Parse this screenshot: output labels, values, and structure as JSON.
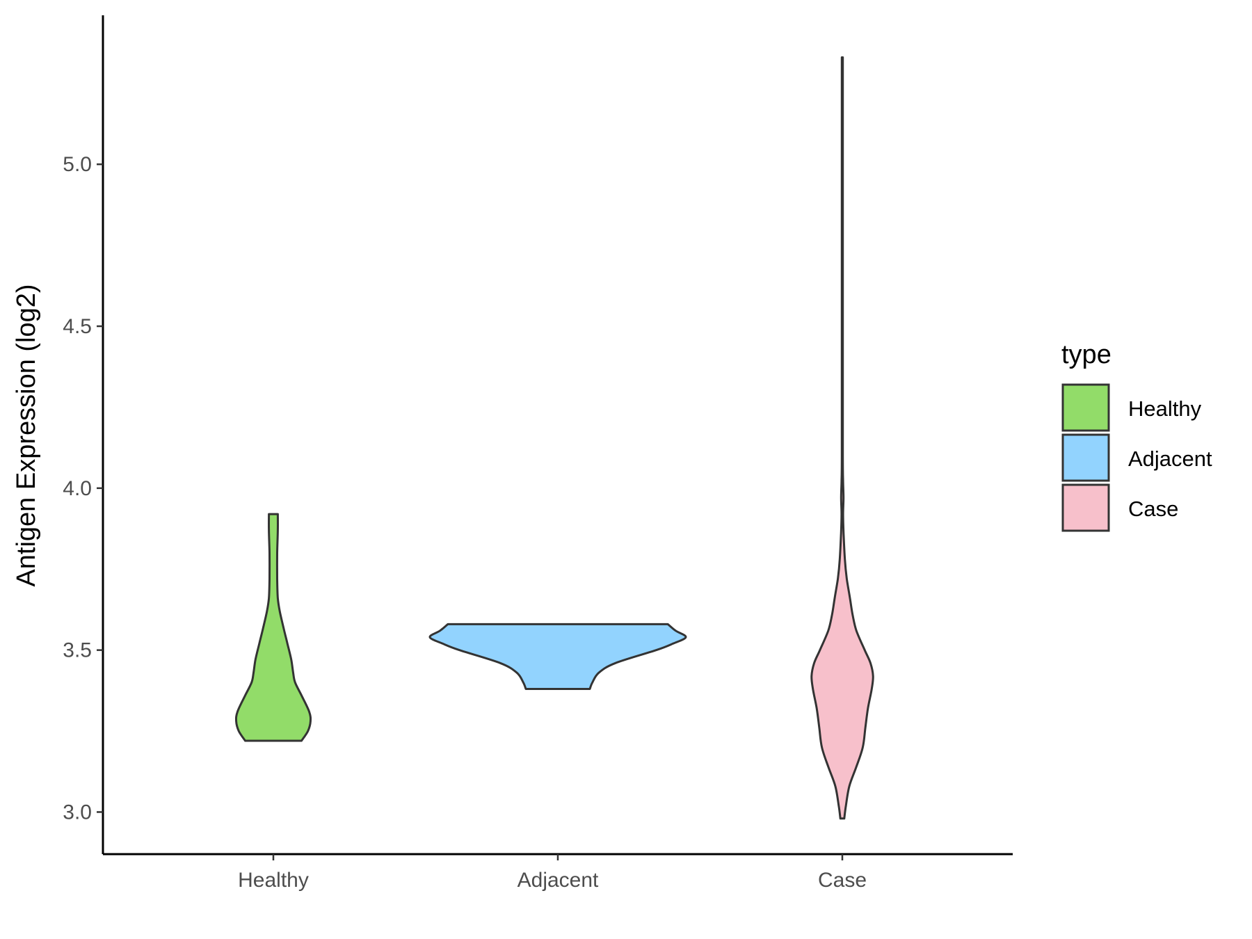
{
  "chart_data": {
    "type": "violin",
    "xlabel": "",
    "ylabel": "Antigen Expression (log2)",
    "ylim": [
      2.87,
      5.46
    ],
    "yticks": [
      "3.0",
      "3.5",
      "4.0",
      "4.5",
      "5.0"
    ],
    "categories": [
      "Healthy",
      "Adjacent",
      "Case"
    ],
    "legend": {
      "title": "type",
      "position": "right",
      "items": [
        {
          "label": "Healthy",
          "color": "#92dc69"
        },
        {
          "label": "Adjacent",
          "color": "#92d3fe"
        },
        {
          "label": "Case",
          "color": "#f7c0cb"
        }
      ]
    },
    "grid": false,
    "series": [
      {
        "name": "Healthy",
        "color": "#92dc69",
        "min": 3.22,
        "max": 3.92,
        "density": [
          [
            3.22,
            0.22
          ],
          [
            3.25,
            0.27
          ],
          [
            3.28,
            0.29
          ],
          [
            3.31,
            0.28
          ],
          [
            3.36,
            0.22
          ],
          [
            3.4,
            0.17
          ],
          [
            3.43,
            0.155
          ],
          [
            3.47,
            0.14
          ],
          [
            3.52,
            0.11
          ],
          [
            3.56,
            0.085
          ],
          [
            3.62,
            0.05
          ],
          [
            3.66,
            0.035
          ],
          [
            3.72,
            0.03
          ],
          [
            3.8,
            0.03
          ],
          [
            3.87,
            0.035
          ],
          [
            3.92,
            0.035
          ]
        ]
      },
      {
        "name": "Adjacent",
        "color": "#92d3fe",
        "min": 3.38,
        "max": 3.58,
        "density": [
          [
            3.38,
            0.25
          ],
          [
            3.4,
            0.27
          ],
          [
            3.43,
            0.32
          ],
          [
            3.46,
            0.45
          ],
          [
            3.5,
            0.77
          ],
          [
            3.52,
            0.9
          ],
          [
            3.54,
            1.0
          ],
          [
            3.56,
            0.92
          ],
          [
            3.58,
            0.86
          ]
        ]
      },
      {
        "name": "Case",
        "color": "#f7c0cb",
        "min": 2.98,
        "max": 5.33,
        "density": [
          [
            2.98,
            0.015
          ],
          [
            3.02,
            0.028
          ],
          [
            3.08,
            0.055
          ],
          [
            3.14,
            0.11
          ],
          [
            3.2,
            0.16
          ],
          [
            3.26,
            0.18
          ],
          [
            3.32,
            0.2
          ],
          [
            3.38,
            0.23
          ],
          [
            3.42,
            0.24
          ],
          [
            3.46,
            0.22
          ],
          [
            3.5,
            0.175
          ],
          [
            3.56,
            0.11
          ],
          [
            3.61,
            0.08
          ],
          [
            3.66,
            0.06
          ],
          [
            3.72,
            0.035
          ],
          [
            3.78,
            0.02
          ],
          [
            3.86,
            0.01
          ],
          [
            3.92,
            0.006
          ],
          [
            3.97,
            0.009
          ],
          [
            4.02,
            0.006
          ],
          [
            4.1,
            0.004
          ],
          [
            4.5,
            0.004
          ],
          [
            5.0,
            0.004
          ],
          [
            5.33,
            0.004
          ]
        ]
      }
    ]
  }
}
